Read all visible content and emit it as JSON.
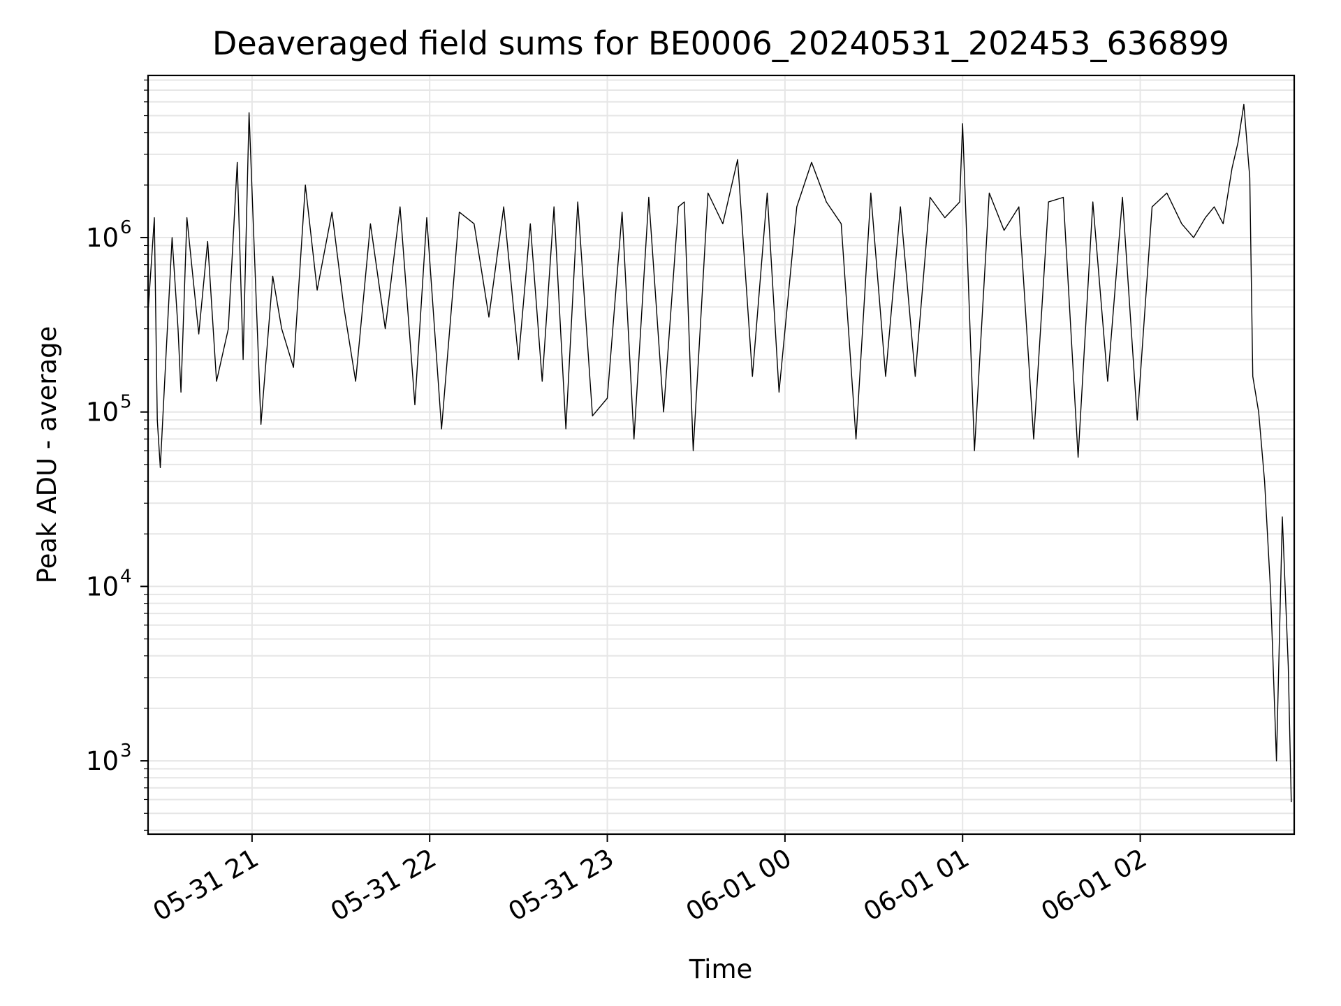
{
  "chart_data": {
    "type": "line",
    "title": "Deaveraged field sums for BE0006_20240531_202453_636899",
    "xlabel": "Time",
    "ylabel": "Peak ADU - average",
    "yscale": "log",
    "grid": true,
    "x_range": [
      "2024-05-31 20:24:53",
      "2024-06-01 02:52:00"
    ],
    "ylim": [
      380,
      8500000
    ],
    "x_ticks": [
      {
        "time": "2024-05-31 21:00",
        "label": "05-31 21"
      },
      {
        "time": "2024-05-31 22:00",
        "label": "05-31 22"
      },
      {
        "time": "2024-05-31 23:00",
        "label": "05-31 23"
      },
      {
        "time": "2024-06-01 00:00",
        "label": "06-01 00"
      },
      {
        "time": "2024-06-01 01:00",
        "label": "06-01 01"
      },
      {
        "time": "2024-06-01 02:00",
        "label": "06-01 02"
      }
    ],
    "y_ticks": [
      {
        "value": 1000,
        "base": "10",
        "exp": "3"
      },
      {
        "value": 10000,
        "base": "10",
        "exp": "4"
      },
      {
        "value": 100000,
        "base": "10",
        "exp": "5"
      },
      {
        "value": 1000000,
        "base": "10",
        "exp": "6"
      }
    ],
    "series": [
      {
        "color": "#000000",
        "x": [
          "2024-05-31 20:25",
          "2024-05-31 20:27",
          "2024-05-31 20:28",
          "2024-05-31 20:29",
          "2024-05-31 20:31",
          "2024-05-31 20:33",
          "2024-05-31 20:35",
          "2024-05-31 20:36",
          "2024-05-31 20:38",
          "2024-05-31 20:40",
          "2024-05-31 20:42",
          "2024-05-31 20:45",
          "2024-05-31 20:48",
          "2024-05-31 20:52",
          "2024-05-31 20:55",
          "2024-05-31 20:57",
          "2024-05-31 20:59",
          "2024-05-31 21:03",
          "2024-05-31 21:07",
          "2024-05-31 21:10",
          "2024-05-31 21:14",
          "2024-05-31 21:18",
          "2024-05-31 21:22",
          "2024-05-31 21:27",
          "2024-05-31 21:31",
          "2024-05-31 21:35",
          "2024-05-31 21:40",
          "2024-05-31 21:45",
          "2024-05-31 21:50",
          "2024-05-31 21:55",
          "2024-05-31 21:59",
          "2024-05-31 22:04",
          "2024-05-31 22:10",
          "2024-05-31 22:15",
          "2024-05-31 22:20",
          "2024-05-31 22:25",
          "2024-05-31 22:30",
          "2024-05-31 22:34",
          "2024-05-31 22:38",
          "2024-05-31 22:42",
          "2024-05-31 22:46",
          "2024-05-31 22:50",
          "2024-05-31 22:55",
          "2024-05-31 23:00",
          "2024-05-31 23:05",
          "2024-05-31 23:09",
          "2024-05-31 23:14",
          "2024-05-31 23:19",
          "2024-05-31 23:24",
          "2024-05-31 23:26",
          "2024-05-31 23:29",
          "2024-05-31 23:34",
          "2024-05-31 23:39",
          "2024-05-31 23:44",
          "2024-05-31 23:49",
          "2024-05-31 23:54",
          "2024-05-31 23:58",
          "2024-06-01 00:04",
          "2024-06-01 00:09",
          "2024-06-01 00:14",
          "2024-06-01 00:19",
          "2024-06-01 00:24",
          "2024-06-01 00:29",
          "2024-06-01 00:34",
          "2024-06-01 00:39",
          "2024-06-01 00:44",
          "2024-06-01 00:49",
          "2024-06-01 00:54",
          "2024-06-01 00:59",
          "2024-06-01 01:00",
          "2024-06-01 01:04",
          "2024-06-01 01:09",
          "2024-06-01 01:14",
          "2024-06-01 01:19",
          "2024-06-01 01:24",
          "2024-06-01 01:29",
          "2024-06-01 01:34",
          "2024-06-01 01:39",
          "2024-06-01 01:44",
          "2024-06-01 01:49",
          "2024-06-01 01:54",
          "2024-06-01 01:59",
          "2024-06-01 02:04",
          "2024-06-01 02:09",
          "2024-06-01 02:14",
          "2024-06-01 02:18",
          "2024-06-01 02:22",
          "2024-06-01 02:25",
          "2024-06-01 02:28",
          "2024-06-01 02:31",
          "2024-06-01 02:33",
          "2024-06-01 02:35",
          "2024-06-01 02:37",
          "2024-06-01 02:38",
          "2024-06-01 02:40",
          "2024-06-01 02:42",
          "2024-06-01 02:44",
          "2024-06-01 02:46",
          "2024-06-01 02:48",
          "2024-06-01 02:50",
          "2024-06-01 02:51"
        ],
        "values": [
          400000,
          1300000,
          90000,
          48000,
          220000,
          1000000,
          300000,
          130000,
          1300000,
          600000,
          280000,
          950000,
          150000,
          300000,
          2700000,
          200000,
          5200000,
          85000,
          600000,
          300000,
          180000,
          2000000,
          500000,
          1400000,
          400000,
          150000,
          1200000,
          300000,
          1500000,
          110000,
          1300000,
          80000,
          1400000,
          1200000,
          350000,
          1500000,
          200000,
          1200000,
          150000,
          1500000,
          80000,
          1600000,
          95000,
          120000,
          1400000,
          70000,
          1700000,
          100000,
          1500000,
          1600000,
          60000,
          1800000,
          1200000,
          2800000,
          160000,
          1800000,
          130000,
          1500000,
          2700000,
          1600000,
          1200000,
          70000,
          1800000,
          160000,
          1500000,
          160000,
          1700000,
          1300000,
          1600000,
          4500000,
          60000,
          1800000,
          1100000,
          1500000,
          70000,
          1600000,
          1700000,
          55000,
          1600000,
          150000,
          1700000,
          90000,
          1500000,
          1800000,
          1200000,
          1000000,
          1300000,
          1500000,
          1200000,
          2500000,
          3500000,
          5800000,
          2200000,
          160000,
          100000,
          40000,
          9500,
          1000,
          25000,
          3500,
          580
        ]
      }
    ]
  }
}
